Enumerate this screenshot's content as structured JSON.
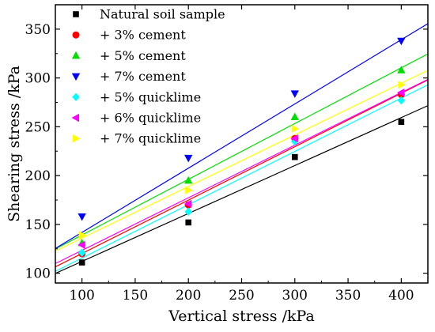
{
  "chart_data": {
    "type": "scatter",
    "title": "",
    "xlabel": "Vertical stress /kPa",
    "ylabel": "Shearing stress /kPa",
    "xlim": [
      75,
      425
    ],
    "ylim": [
      90,
      375
    ],
    "xticks": [
      100,
      150,
      200,
      250,
      300,
      350,
      400
    ],
    "yticks": [
      100,
      150,
      200,
      250,
      300,
      350
    ],
    "grid": false,
    "legend_position": "top-left",
    "x": [
      100,
      200,
      300,
      400
    ],
    "series": [
      {
        "name": "Natural soil sample",
        "color": "#000000",
        "marker": "square",
        "values": [
          111,
          152,
          219,
          255
        ],
        "fit": {
          "slope": 0.491,
          "intercept": 63
        }
      },
      {
        "name": "+ 3% cement",
        "color": "#ff0000",
        "marker": "circle",
        "values": [
          120,
          170,
          238,
          283
        ],
        "fit": {
          "slope": 0.547,
          "intercept": 65.5
        }
      },
      {
        "name": "+ 5% cement",
        "color": "#00dd00",
        "marker": "triangle-up",
        "values": [
          131,
          195,
          260,
          308
        ],
        "fit": {
          "slope": 0.571,
          "intercept": 82
        }
      },
      {
        "name": "+ 7% cement",
        "color": "#0000ff",
        "marker": "triangle-down",
        "values": [
          158,
          218,
          284,
          338
        ],
        "fit": {
          "slope": 0.658,
          "intercept": 76
        }
      },
      {
        "name": "+ 5% quicklime",
        "color": "#00ffff",
        "marker": "diamond",
        "values": [
          121,
          163,
          235,
          277
        ],
        "fit": {
          "slope": 0.546,
          "intercept": 61
        }
      },
      {
        "name": "+ 6% quicklime",
        "color": "#ff00ff",
        "marker": "triangle-left",
        "values": [
          129,
          171,
          238,
          285
        ],
        "fit": {
          "slope": 0.539,
          "intercept": 69.5
        }
      },
      {
        "name": "+ 7% quicklime",
        "color": "#ffff00",
        "marker": "triangle-right",
        "values": [
          139,
          185,
          248,
          293
        ],
        "fit": {
          "slope": 0.529,
          "intercept": 83
        }
      }
    ]
  }
}
